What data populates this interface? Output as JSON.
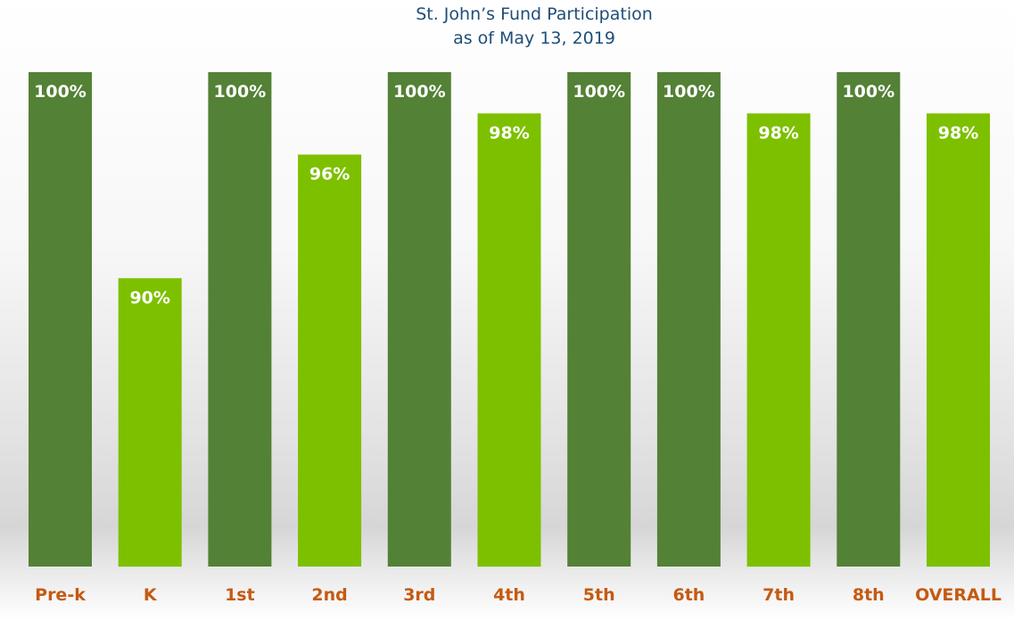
{
  "chart_data": {
    "type": "bar",
    "title": [
      "St. John’s Fund Participation",
      "as of May 13, 2019"
    ],
    "categories": [
      "Pre-k",
      "K",
      "1st",
      "2nd",
      "3rd",
      "4th",
      "5th",
      "6th",
      "7th",
      "8th",
      "OVERALL"
    ],
    "values": [
      100,
      90,
      100,
      96,
      100,
      98,
      100,
      100,
      98,
      100,
      98
    ],
    "data_labels": [
      "100%",
      "90%",
      "100%",
      "96%",
      "100%",
      "98%",
      "100%",
      "100%",
      "98%",
      "100%",
      "98%"
    ],
    "unit": "%",
    "ylim": [
      76,
      100
    ],
    "grid": false,
    "legend": "none",
    "colors": {
      "full_participation": "#538135",
      "partial_participation": "#7dc000",
      "data_label": "#ffffff",
      "category_label": "#c55a11",
      "title": "#1f4e79"
    }
  }
}
